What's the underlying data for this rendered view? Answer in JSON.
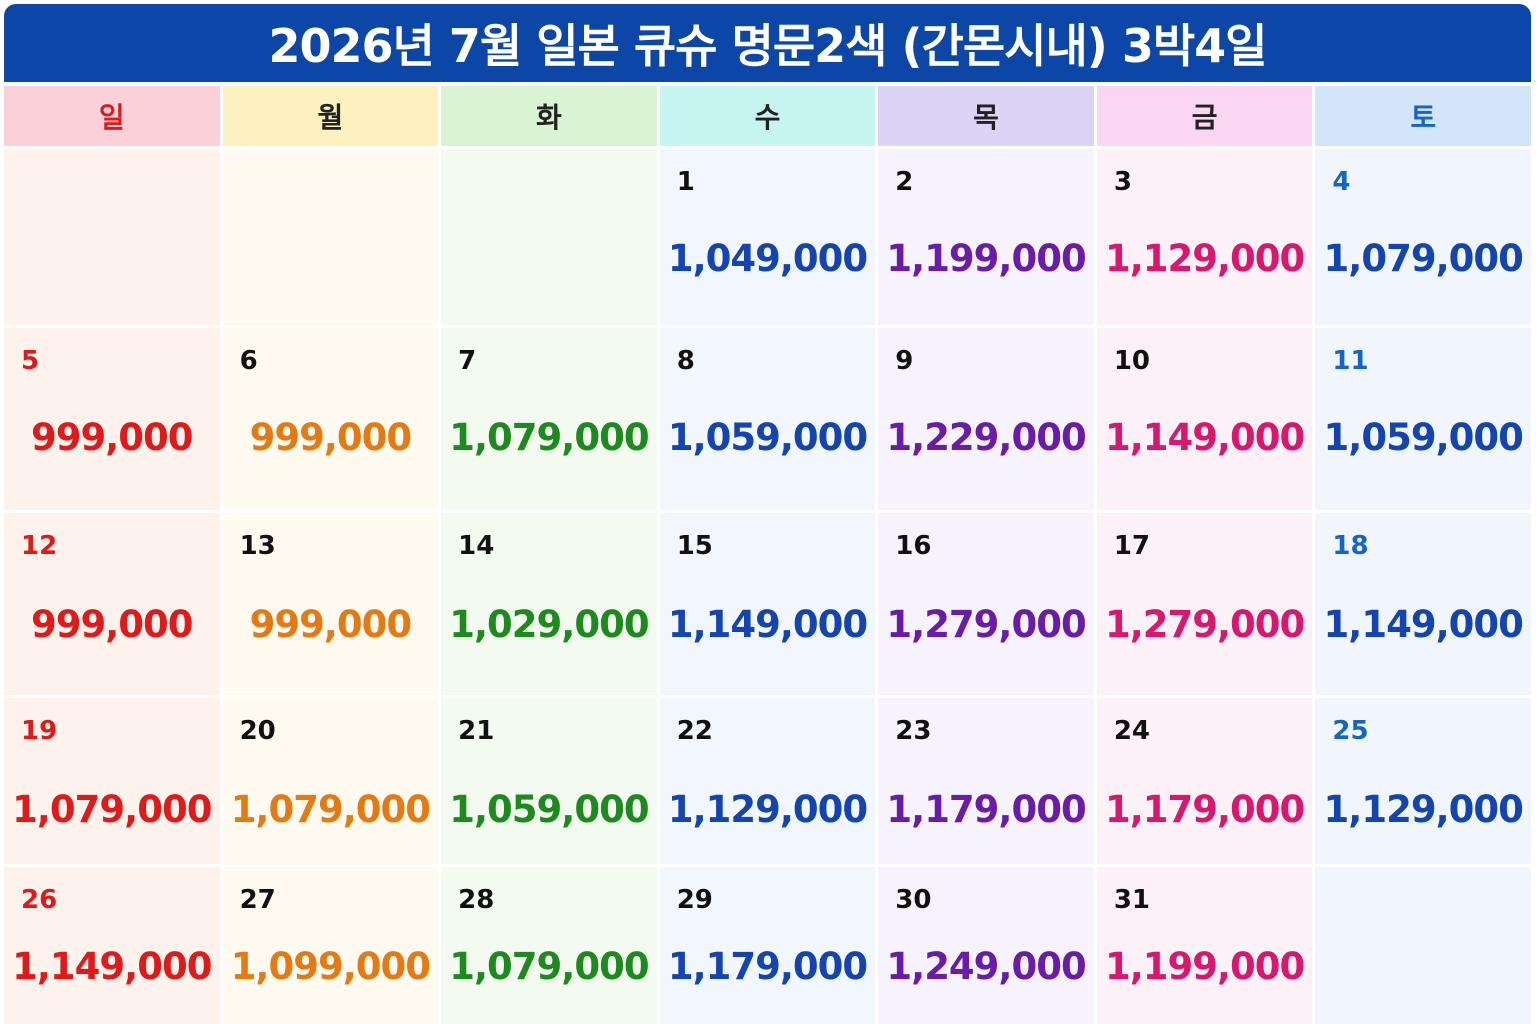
{
  "title": "2026년 7월 일본 큐슈 명문2색 (간몬시내) 3박4일",
  "colors": {
    "title_bg": "#0c47a8",
    "columns": [
      {
        "header_bg": "#fbd0d8",
        "cell_bg": "#fdf3ec",
        "price": "#e01a1a",
        "daynum": "#e01a1a",
        "header_text": "#e01a1a"
      },
      {
        "header_bg": "#fdf1c0",
        "cell_bg": "#fefaf0",
        "price": "#e67a12",
        "daynum": "#111111",
        "header_text": "#222222"
      },
      {
        "header_bg": "#d9f4d2",
        "cell_bg": "#f3fbf0",
        "price": "#1d8a1d",
        "daynum": "#111111",
        "header_text": "#222222"
      },
      {
        "header_bg": "#c6f5f2",
        "cell_bg": "#f1f7fc",
        "price": "#1444b0",
        "daynum": "#111111",
        "header_text": "#222222"
      },
      {
        "header_bg": "#ddd3f7",
        "cell_bg": "#f6f3fc",
        "price": "#6a1ba8",
        "daynum": "#111111",
        "header_text": "#222222"
      },
      {
        "header_bg": "#fbd6f3",
        "cell_bg": "#fcf1f7",
        "price": "#d8186e",
        "daynum": "#111111",
        "header_text": "#222222"
      },
      {
        "header_bg": "#d3e5f8",
        "cell_bg": "#f1f6fc",
        "price": "#1444b0",
        "daynum": "#1565c8",
        "header_text": "#1565c8"
      }
    ]
  },
  "weekdays": [
    "일",
    "월",
    "화",
    "수",
    "목",
    "금",
    "토"
  ],
  "weeks": [
    [
      {
        "day": "",
        "price": ""
      },
      {
        "day": "",
        "price": ""
      },
      {
        "day": "",
        "price": ""
      },
      {
        "day": "1",
        "price": "1,049,000"
      },
      {
        "day": "2",
        "price": "1,199,000"
      },
      {
        "day": "3",
        "price": "1,129,000"
      },
      {
        "day": "4",
        "price": "1,079,000"
      }
    ],
    [
      {
        "day": "5",
        "price": "999,000"
      },
      {
        "day": "6",
        "price": "999,000"
      },
      {
        "day": "7",
        "price": "1,079,000"
      },
      {
        "day": "8",
        "price": "1,059,000"
      },
      {
        "day": "9",
        "price": "1,229,000"
      },
      {
        "day": "10",
        "price": "1,149,000"
      },
      {
        "day": "11",
        "price": "1,059,000"
      }
    ],
    [
      {
        "day": "12",
        "price": "999,000"
      },
      {
        "day": "13",
        "price": "999,000"
      },
      {
        "day": "14",
        "price": "1,029,000"
      },
      {
        "day": "15",
        "price": "1,149,000"
      },
      {
        "day": "16",
        "price": "1,279,000"
      },
      {
        "day": "17",
        "price": "1,279,000"
      },
      {
        "day": "18",
        "price": "1,149,000"
      }
    ],
    [
      {
        "day": "19",
        "price": "1,079,000"
      },
      {
        "day": "20",
        "price": "1,079,000"
      },
      {
        "day": "21",
        "price": "1,059,000"
      },
      {
        "day": "22",
        "price": "1,129,000"
      },
      {
        "day": "23",
        "price": "1,179,000"
      },
      {
        "day": "24",
        "price": "1,179,000"
      },
      {
        "day": "25",
        "price": "1,129,000"
      }
    ],
    [
      {
        "day": "26",
        "price": "1,149,000"
      },
      {
        "day": "27",
        "price": "1,099,000"
      },
      {
        "day": "28",
        "price": "1,079,000"
      },
      {
        "day": "29",
        "price": "1,179,000"
      },
      {
        "day": "30",
        "price": "1,249,000"
      },
      {
        "day": "31",
        "price": "1,199,000"
      },
      {
        "day": "",
        "price": ""
      }
    ]
  ]
}
